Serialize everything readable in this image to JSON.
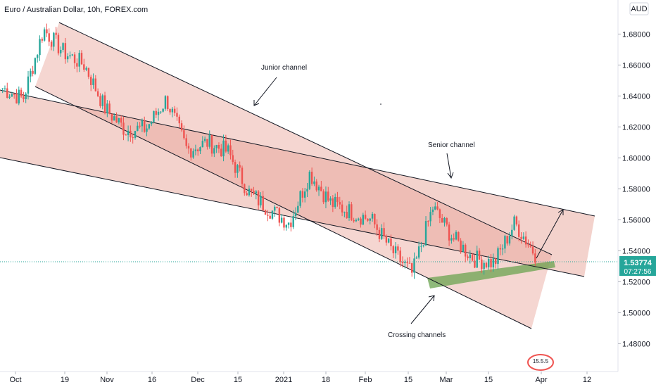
{
  "header": {
    "title": "Euro / Australian Dollar, 10h, FOREX.com",
    "currency_badge": "AUD",
    "logo_text": "15.5.5"
  },
  "price_tag": {
    "price": "1.53774",
    "countdown": "07:27:56"
  },
  "annotations": {
    "junior": "Junior channel",
    "senior": "Senior channel",
    "crossing": "Crossing channels"
  },
  "colors": {
    "up_candle": "#26a69a",
    "down_candle": "#ef5350",
    "channel_fill": "#e8a59a",
    "overlap_fill": "#d9877d",
    "green_zone": "#6aa34f",
    "price_tag_bg": "#26a69a",
    "trend_line": "#131722"
  },
  "chart_data": {
    "type": "candlestick",
    "title": "Euro / Australian Dollar, 10h, FOREX.com",
    "xlabel": "",
    "ylabel": "",
    "ylim": [
      1.462,
      1.702
    ],
    "y_ticks": [
      "1.68000",
      "1.66000",
      "1.64000",
      "1.62000",
      "1.60000",
      "1.58000",
      "1.56000",
      "1.54000",
      "1.52000",
      "1.50000",
      "1.48000"
    ],
    "x_ticks": [
      "Oct",
      "19",
      "Nov",
      "16",
      "Dec",
      "15",
      "2021",
      "18",
      "Feb",
      "15",
      "Mar",
      "15",
      "Apr",
      "12"
    ],
    "last_price": 1.53774,
    "series": [
      {
        "x": [
          "2020-10-01",
          "2020-10-12",
          "2020-10-19",
          "2020-10-26",
          "2020-11-02",
          "2020-11-09",
          "2020-11-16",
          "2020-11-23",
          "2020-12-01",
          "2020-12-08",
          "2020-12-15",
          "2020-12-22",
          "2021-01-01",
          "2021-01-11",
          "2021-01-18",
          "2021-01-25",
          "2021-02-01",
          "2021-02-08",
          "2021-02-15",
          "2021-02-22",
          "2021-02-26",
          "2021-03-02",
          "2021-03-08",
          "2021-03-15",
          "2021-03-22",
          "2021-03-25",
          "2021-03-30"
        ],
        "close": [
          1.645,
          1.638,
          1.683,
          1.668,
          1.66,
          1.632,
          1.618,
          1.619,
          1.638,
          1.605,
          1.61,
          1.604,
          1.578,
          1.567,
          1.558,
          1.59,
          1.571,
          1.565,
          1.56,
          1.54,
          1.525,
          1.568,
          1.548,
          1.535,
          1.532,
          1.558,
          1.538
        ]
      }
    ]
  }
}
